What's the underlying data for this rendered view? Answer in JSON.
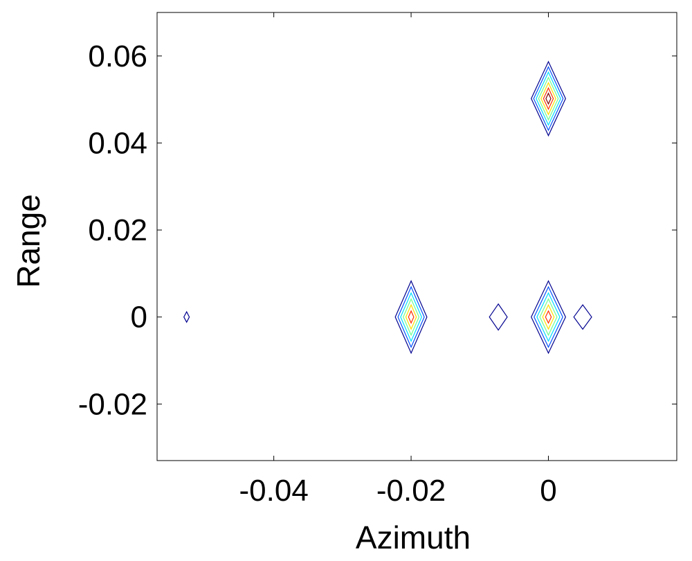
{
  "chart_data": {
    "type": "contour",
    "title": "",
    "xlabel": "Azimuth",
    "ylabel": "Range",
    "xlim": [
      -0.057,
      0.0187
    ],
    "ylim": [
      -0.033,
      0.07
    ],
    "x_ticks": [
      -0.04,
      -0.02,
      0
    ],
    "x_tick_labels": [
      "-0.04",
      "-0.02",
      "0"
    ],
    "y_ticks": [
      -0.02,
      0,
      0.02,
      0.04,
      0.06
    ],
    "y_tick_labels": [
      "-0.02",
      "0",
      "0.02",
      "0.04",
      "0.06"
    ],
    "grid": false,
    "legend": "none",
    "level_colors": [
      "#00008f",
      "#0050ff",
      "#00dfff",
      "#70ff8f",
      "#ffdf00",
      "#ff3000",
      "#800000"
    ],
    "peaks": [
      {
        "x": 0.0,
        "y": 0.0502,
        "half_width_x": 0.0025,
        "half_height_y": 0.0085,
        "levels": 7
      },
      {
        "x": -0.02,
        "y": 0.0,
        "half_width_x": 0.0023,
        "half_height_y": 0.0083,
        "levels": 6
      },
      {
        "x": 0.0,
        "y": 0.0,
        "half_width_x": 0.0025,
        "half_height_y": 0.0083,
        "levels": 6
      },
      {
        "x": -0.0073,
        "y": 0.0,
        "half_width_x": 0.0013,
        "half_height_y": 0.003,
        "levels": 1
      },
      {
        "x": 0.005,
        "y": 0.0,
        "half_width_x": 0.0013,
        "half_height_y": 0.0028,
        "levels": 1
      },
      {
        "x": -0.0527,
        "y": 0.0,
        "half_width_x": 0.0004,
        "half_height_y": 0.0012,
        "levels": 1
      }
    ]
  }
}
